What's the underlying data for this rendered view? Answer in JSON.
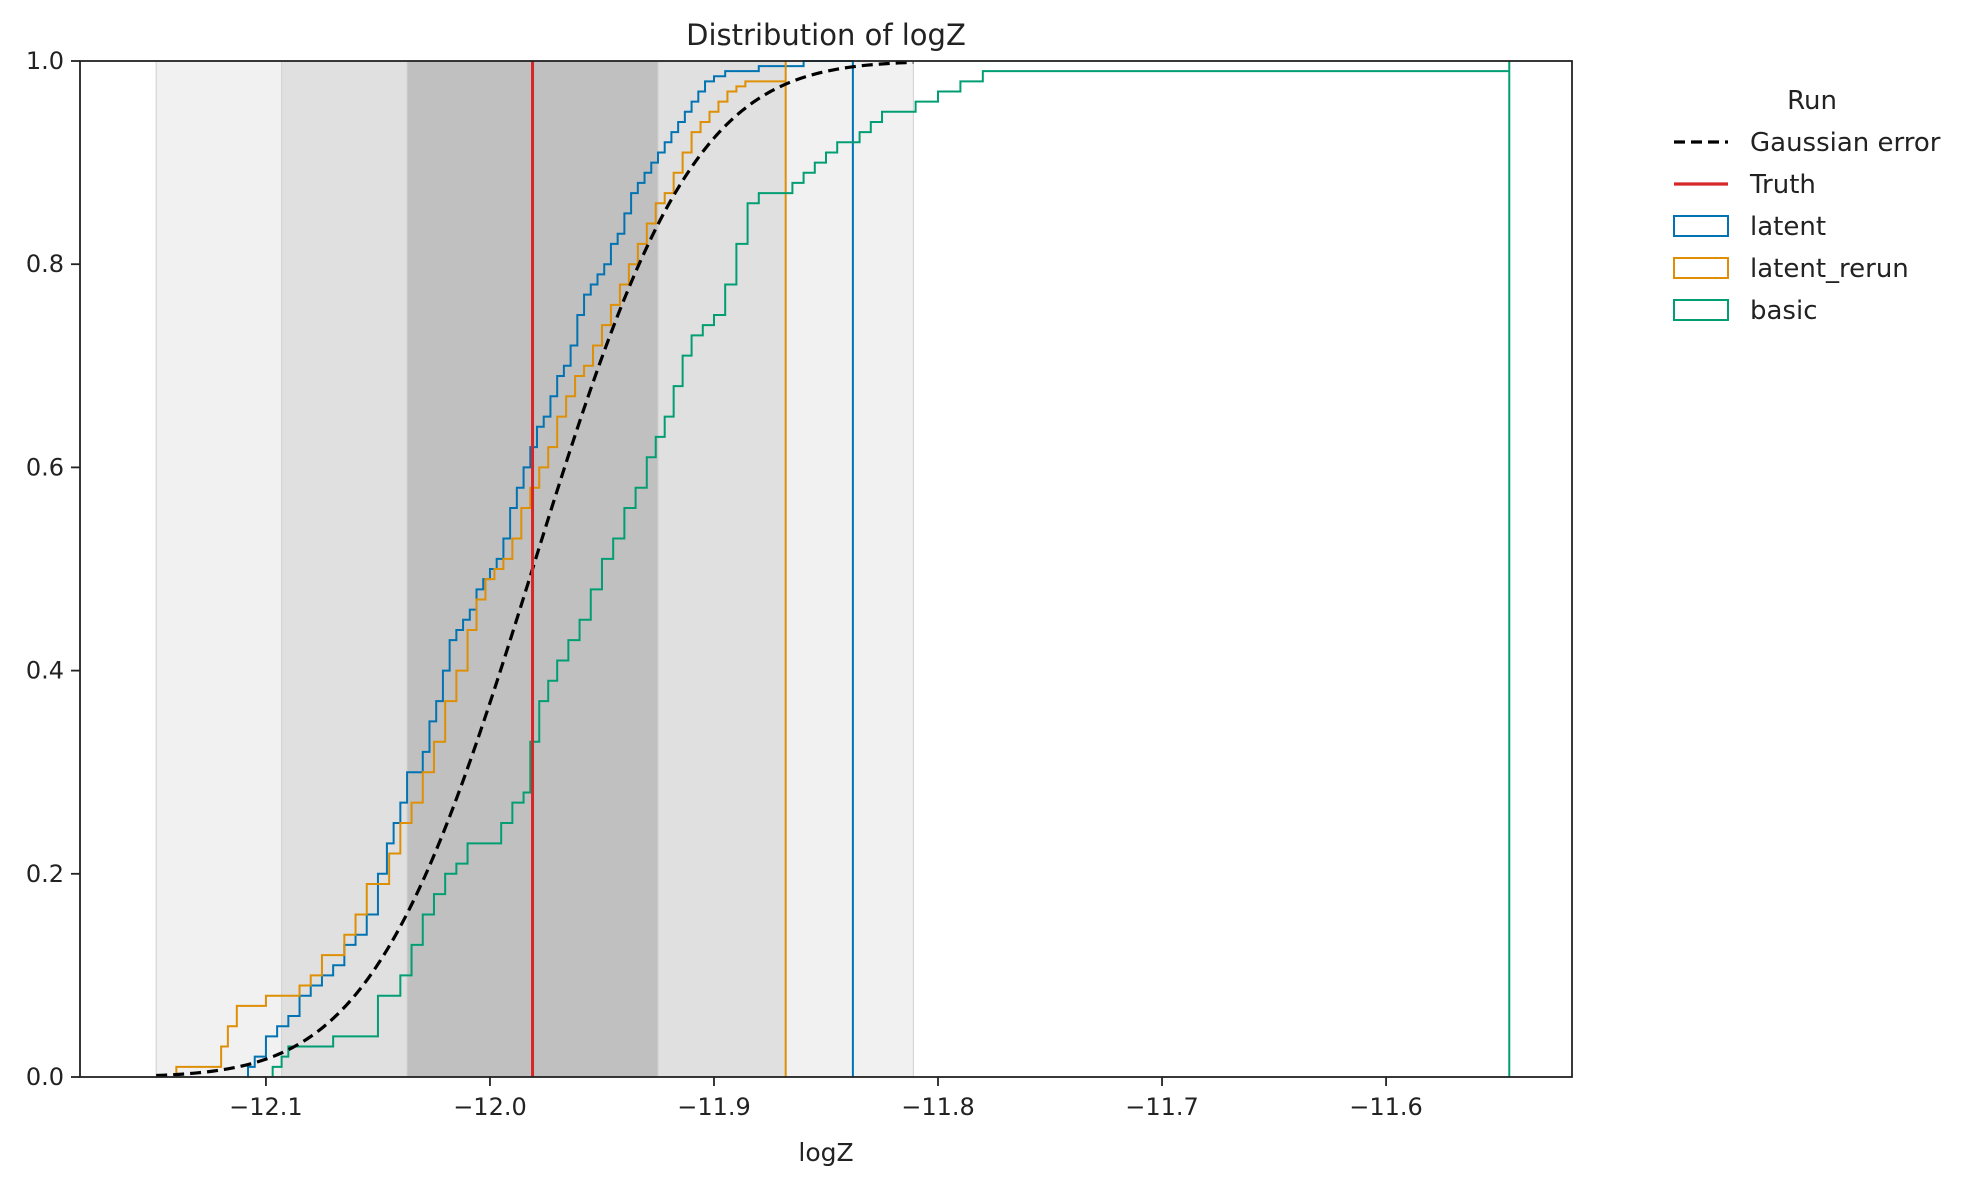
{
  "chart_data": {
    "type": "line",
    "title": "Distribution of logZ",
    "xlabel": "logZ",
    "ylabel": "",
    "xlim": [
      -12.183,
      -11.517
    ],
    "ylim": [
      0,
      1
    ],
    "xticks": [
      -12.1,
      -12.0,
      -11.9,
      -11.8,
      -11.7,
      -11.6
    ],
    "xtick_labels": [
      "−12.1",
      "−12.0",
      "−11.9",
      "−11.8",
      "−11.7",
      "−11.6"
    ],
    "yticks": [
      0,
      0.2,
      0.4,
      0.6,
      0.8,
      1.0
    ],
    "ytick_labels": [
      "0.0",
      "0.2",
      "0.4",
      "0.6",
      "0.8",
      "1.0"
    ],
    "grid": false,
    "legend": {
      "title": "Run",
      "placement": "outside-right",
      "entries": [
        "Gaussian error",
        "Truth",
        "latent",
        "latent_rerun",
        "basic"
      ]
    },
    "truth": {
      "name": "Truth",
      "x": -11.981,
      "color": "#d62728"
    },
    "sigma_bands": [
      {
        "x0": -12.037,
        "x1": -11.925,
        "fill": "#c0c0c0"
      },
      {
        "x0": -12.093,
        "x1": -11.868,
        "fill": "#e0e0e0"
      },
      {
        "x0": -12.149,
        "x1": -11.811,
        "fill": "#f1f1f1"
      }
    ],
    "gaussian": {
      "name": "Gaussian error",
      "mean": -11.981,
      "sd": 0.0565,
      "x_range": [
        -12.149,
        -11.811
      ],
      "color": "#000000"
    },
    "series": [
      {
        "name": "latent",
        "color": "#0173b2",
        "x": [
          -12.108,
          -12.105,
          -12.1,
          -12.095,
          -12.09,
          -12.085,
          -12.08,
          -12.075,
          -12.07,
          -12.065,
          -12.06,
          -12.055,
          -12.05,
          -12.046,
          -12.043,
          -12.04,
          -12.037,
          -12.03,
          -12.027,
          -12.024,
          -12.021,
          -12.018,
          -12.015,
          -12.012,
          -12.009,
          -12.006,
          -12.003,
          -12.0,
          -11.997,
          -11.994,
          -11.991,
          -11.988,
          -11.985,
          -11.982,
          -11.979,
          -11.976,
          -11.973,
          -11.97,
          -11.967,
          -11.964,
          -11.961,
          -11.958,
          -11.955,
          -11.952,
          -11.949,
          -11.946,
          -11.943,
          -11.94,
          -11.937,
          -11.934,
          -11.931,
          -11.928,
          -11.925,
          -11.922,
          -11.919,
          -11.916,
          -11.913,
          -11.91,
          -11.907,
          -11.904,
          -11.9,
          -11.895,
          -11.89,
          -11.885,
          -11.88,
          -11.875,
          -11.87,
          -11.86,
          -11.85,
          -11.838
        ],
        "y": [
          0.01,
          0.02,
          0.04,
          0.05,
          0.06,
          0.08,
          0.09,
          0.1,
          0.11,
          0.13,
          0.14,
          0.16,
          0.2,
          0.23,
          0.25,
          0.27,
          0.3,
          0.32,
          0.35,
          0.37,
          0.4,
          0.43,
          0.44,
          0.45,
          0.46,
          0.48,
          0.49,
          0.5,
          0.51,
          0.53,
          0.56,
          0.58,
          0.6,
          0.62,
          0.64,
          0.65,
          0.67,
          0.69,
          0.7,
          0.72,
          0.75,
          0.77,
          0.78,
          0.79,
          0.8,
          0.82,
          0.83,
          0.85,
          0.87,
          0.88,
          0.89,
          0.9,
          0.91,
          0.92,
          0.93,
          0.94,
          0.95,
          0.96,
          0.97,
          0.98,
          0.985,
          0.99,
          0.99,
          0.99,
          0.995,
          0.995,
          0.995,
          1.0,
          1.0,
          1.0
        ]
      },
      {
        "name": "latent_rerun",
        "color": "#de8f05",
        "x": [
          -12.14,
          -12.12,
          -12.117,
          -12.113,
          -12.1,
          -12.085,
          -12.08,
          -12.075,
          -12.065,
          -12.06,
          -12.055,
          -12.045,
          -12.04,
          -12.035,
          -12.03,
          -12.025,
          -12.02,
          -12.015,
          -12.01,
          -12.006,
          -12.002,
          -11.998,
          -11.994,
          -11.99,
          -11.986,
          -11.982,
          -11.978,
          -11.974,
          -11.97,
          -11.966,
          -11.962,
          -11.958,
          -11.954,
          -11.95,
          -11.946,
          -11.942,
          -11.938,
          -11.934,
          -11.93,
          -11.926,
          -11.922,
          -11.918,
          -11.914,
          -11.91,
          -11.906,
          -11.902,
          -11.898,
          -11.894,
          -11.89,
          -11.886,
          -11.868
        ],
        "y": [
          0.01,
          0.03,
          0.05,
          0.07,
          0.08,
          0.09,
          0.1,
          0.12,
          0.14,
          0.16,
          0.19,
          0.22,
          0.25,
          0.27,
          0.3,
          0.33,
          0.37,
          0.4,
          0.44,
          0.47,
          0.49,
          0.5,
          0.51,
          0.53,
          0.56,
          0.58,
          0.6,
          0.62,
          0.65,
          0.67,
          0.69,
          0.7,
          0.72,
          0.74,
          0.76,
          0.78,
          0.8,
          0.82,
          0.84,
          0.86,
          0.87,
          0.89,
          0.91,
          0.93,
          0.94,
          0.95,
          0.96,
          0.97,
          0.975,
          0.98,
          1.0
        ]
      },
      {
        "name": "basic",
        "color": "#029e73",
        "x": [
          -12.097,
          -12.093,
          -12.09,
          -12.085,
          -12.07,
          -12.05,
          -12.04,
          -12.035,
          -12.03,
          -12.025,
          -12.02,
          -12.015,
          -12.01,
          -12.005,
          -11.995,
          -11.99,
          -11.985,
          -11.982,
          -11.978,
          -11.974,
          -11.97,
          -11.965,
          -11.96,
          -11.955,
          -11.95,
          -11.945,
          -11.94,
          -11.935,
          -11.93,
          -11.926,
          -11.922,
          -11.918,
          -11.914,
          -11.91,
          -11.905,
          -11.9,
          -11.895,
          -11.89,
          -11.885,
          -11.88,
          -11.875,
          -11.87,
          -11.865,
          -11.86,
          -11.855,
          -11.85,
          -11.845,
          -11.84,
          -11.835,
          -11.83,
          -11.825,
          -11.82,
          -11.81,
          -11.8,
          -11.79,
          -11.78,
          -11.545
        ],
        "y": [
          0.01,
          0.02,
          0.03,
          0.03,
          0.04,
          0.08,
          0.1,
          0.13,
          0.16,
          0.18,
          0.2,
          0.21,
          0.23,
          0.23,
          0.25,
          0.27,
          0.28,
          0.33,
          0.37,
          0.39,
          0.41,
          0.43,
          0.45,
          0.48,
          0.51,
          0.53,
          0.56,
          0.58,
          0.61,
          0.63,
          0.65,
          0.68,
          0.71,
          0.73,
          0.74,
          0.75,
          0.78,
          0.82,
          0.86,
          0.87,
          0.87,
          0.87,
          0.88,
          0.89,
          0.9,
          0.91,
          0.92,
          0.92,
          0.93,
          0.94,
          0.95,
          0.95,
          0.96,
          0.97,
          0.98,
          0.99,
          1.0
        ]
      }
    ]
  }
}
